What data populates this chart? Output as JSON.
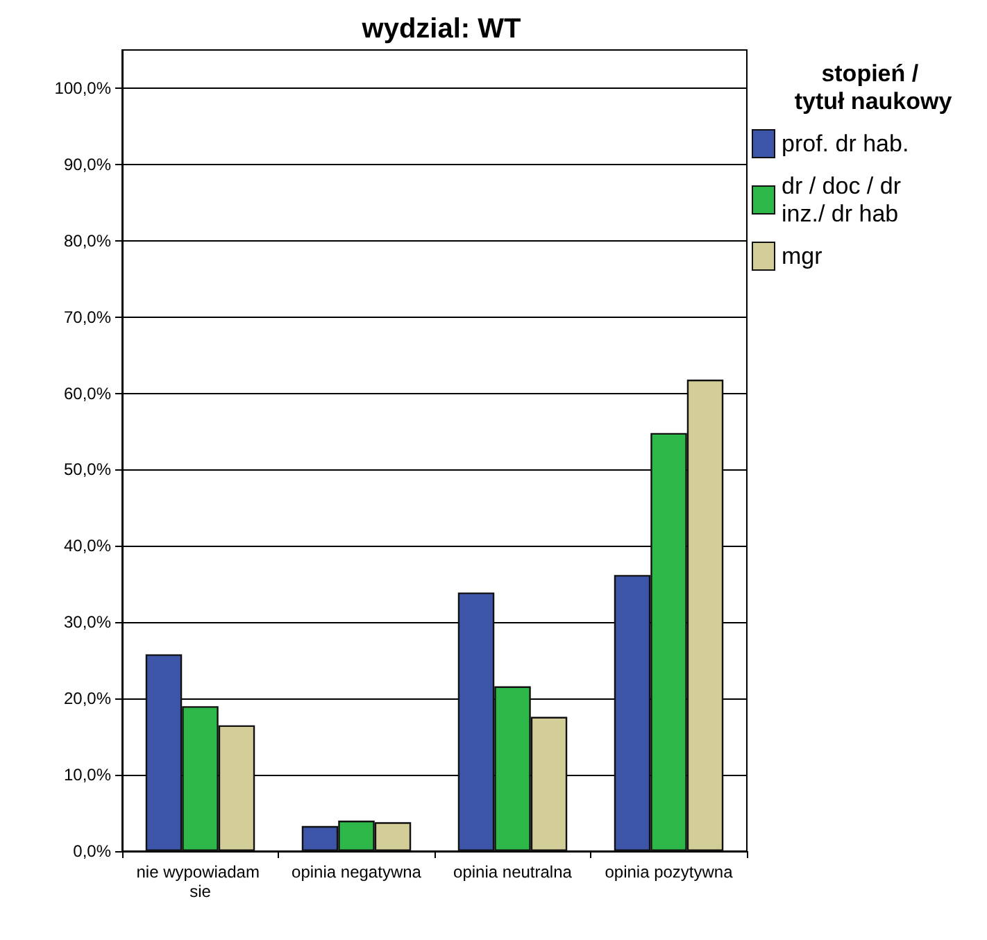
{
  "chart_data": {
    "type": "bar",
    "title": "wydzial: WT",
    "legend_title": "stopień / tytuł naukowy",
    "categories": [
      "nie wypowiadam sie",
      "opinia negatywna",
      "opinia neutralna",
      "opinia pozytywna"
    ],
    "series": [
      {
        "name": "prof. dr hab.",
        "color": "#3c55a8",
        "values": [
          25.8,
          3.3,
          33.9,
          36.2
        ]
      },
      {
        "name": "dr / doc / dr inz./ dr hab",
        "color": "#2fb84a",
        "values": [
          19.0,
          4.0,
          21.6,
          54.8
        ]
      },
      {
        "name": "mgr",
        "color": "#d3cd98",
        "values": [
          16.5,
          3.8,
          17.6,
          61.8
        ]
      }
    ],
    "ylim": [
      0,
      105
    ],
    "yticks": [
      {
        "value": 0,
        "label": "0,0%"
      },
      {
        "value": 10,
        "label": "10,0%"
      },
      {
        "value": 20,
        "label": "20,0%"
      },
      {
        "value": 30,
        "label": "30,0%"
      },
      {
        "value": 40,
        "label": "40,0%"
      },
      {
        "value": 50,
        "label": "50,0%"
      },
      {
        "value": 60,
        "label": "60,0%"
      },
      {
        "value": 70,
        "label": "70,0%"
      },
      {
        "value": 80,
        "label": "80,0%"
      },
      {
        "value": 90,
        "label": "90,0%"
      },
      {
        "value": 100,
        "label": "100,0%"
      }
    ],
    "grid": "y",
    "legend": "right"
  }
}
